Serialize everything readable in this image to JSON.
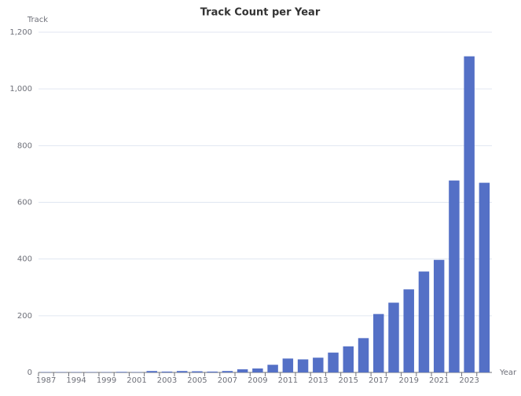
{
  "chart_data": {
    "type": "bar",
    "title": "Track Count per Year",
    "y_axis_label": "Track",
    "x_axis_label": "Year",
    "categories": [
      "1987",
      null,
      "1994",
      null,
      "1999",
      null,
      "2001",
      null,
      "2003",
      null,
      "2005",
      null,
      "2007",
      null,
      "2009",
      null,
      "2011",
      null,
      "2013",
      null,
      "2015",
      null,
      "2017",
      null,
      "2019",
      null,
      "2021",
      null,
      "2023",
      null
    ],
    "values": [
      1,
      1,
      1,
      1,
      1,
      2,
      1,
      5,
      3,
      5,
      4,
      3,
      5,
      11,
      14,
      27,
      49,
      46,
      52,
      70,
      92,
      121,
      206,
      246,
      293,
      356,
      397,
      677,
      1115,
      669
    ],
    "color": "#5470c6",
    "ylim": [
      0,
      1200
    ],
    "yticks": [
      0,
      200,
      400,
      600,
      800,
      {
        "value": 1000,
        "label": "1,000"
      },
      {
        "value": 1200,
        "label": "1,200"
      }
    ],
    "grid": true
  }
}
